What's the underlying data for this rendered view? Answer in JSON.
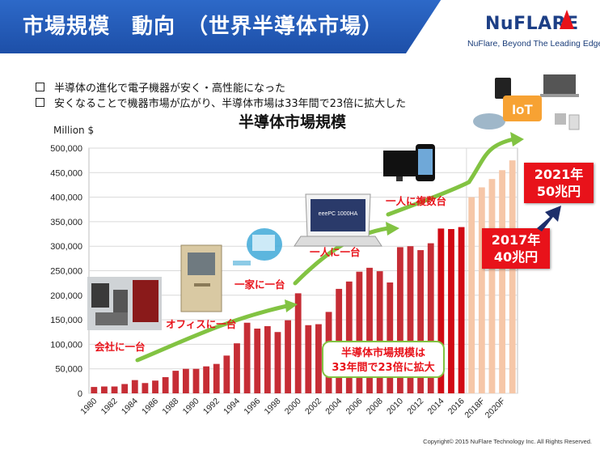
{
  "header": {
    "title": "市場規模　動向　（世界半導体市場）",
    "logo_text": "NuFLARE",
    "tagline": "NuFlare, Beyond The Leading Edge"
  },
  "bullets": [
    "半導体の進化で電子機器が安く・高性能になった",
    "安くなることで機器市場が広がり、半導体市場は33年間で23倍に拡大した"
  ],
  "images": {
    "iot_label": "IoT",
    "netbook_screen": "eeePC 1000HA"
  },
  "stages": {
    "company": "会社に一台",
    "office": "オフィスに一台",
    "home": "一家に一台",
    "person": "一人に一台",
    "multiple": "一人に複数台"
  },
  "summary": {
    "line1": "半導体市場規模は",
    "line2": "33年間で23倍に拡大"
  },
  "callouts": {
    "y2017_line1": "2017年",
    "y2017_line2": "40兆円",
    "y2021_line1": "2021年",
    "y2021_line2": "50兆円"
  },
  "colors": {
    "bar_actual": "#c62d35",
    "bar_highlight": "#d10a14",
    "bar_forecast": "#f6c7a8",
    "arrow": "#82c342",
    "callout": "#e8121a"
  },
  "copyright": "Copyright© 2015 NuFlare Technology Inc. All Rights Reserved.",
  "chart_data": {
    "type": "bar",
    "title": "半導体市場規模",
    "ylabel": "Million $",
    "ylim": [
      0,
      500000
    ],
    "yticks": [
      "0",
      "50,000",
      "100,000",
      "150,000",
      "200,000",
      "250,000",
      "300,000",
      "350,000",
      "400,000",
      "450,000",
      "500,000"
    ],
    "grid": true,
    "categories": [
      "1980",
      "1981",
      "1982",
      "1983",
      "1984",
      "1985",
      "1986",
      "1987",
      "1988",
      "1989",
      "1990",
      "1991",
      "1992",
      "1993",
      "1994",
      "1995",
      "1996",
      "1997",
      "1998",
      "1999",
      "2000",
      "2001",
      "2002",
      "2003",
      "2004",
      "2005",
      "2006",
      "2007",
      "2008",
      "2009",
      "2010",
      "2011",
      "2012",
      "2013",
      "2014",
      "2015",
      "2016",
      "2017F",
      "2018F",
      "2019F",
      "2020F",
      "2021F"
    ],
    "xtick_labels": [
      "1980",
      "1982",
      "1984",
      "1986",
      "1988",
      "1990",
      "1992",
      "1994",
      "1996",
      "1998",
      "2000",
      "2002",
      "2004",
      "2006",
      "2008",
      "2010",
      "2012",
      "2014",
      "2016",
      "2018F",
      "2020F"
    ],
    "values": [
      13000,
      14000,
      14000,
      19000,
      27000,
      21000,
      26000,
      33000,
      46000,
      50000,
      50000,
      55000,
      60000,
      77000,
      102000,
      144000,
      132000,
      137000,
      125000,
      149000,
      204000,
      139000,
      141000,
      166000,
      213000,
      228000,
      248000,
      256000,
      249000,
      226000,
      298000,
      300000,
      292000,
      306000,
      336000,
      335000,
      339000,
      400000,
      420000,
      437000,
      455000,
      475000
    ],
    "series_types": [
      "actual",
      "actual",
      "actual",
      "actual",
      "actual",
      "actual",
      "actual",
      "actual",
      "actual",
      "actual",
      "actual",
      "actual",
      "actual",
      "actual",
      "actual",
      "actual",
      "actual",
      "actual",
      "actual",
      "actual",
      "actual",
      "actual",
      "actual",
      "actual",
      "actual",
      "actual",
      "actual",
      "actual",
      "actual",
      "actual",
      "actual",
      "actual",
      "actual",
      "actual",
      "highlight",
      "highlight",
      "highlight",
      "forecast",
      "forecast",
      "forecast",
      "forecast",
      "forecast"
    ]
  }
}
